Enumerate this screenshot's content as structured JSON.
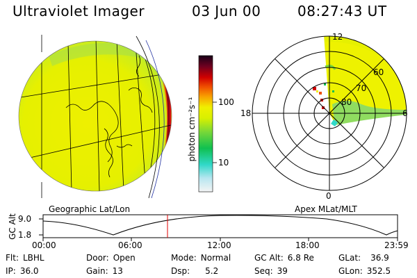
{
  "header": {
    "instrument": "Ultraviolet Imager",
    "date": "03 Jun 00",
    "time": "08:27:43 UT"
  },
  "colorbar": {
    "unit_label": "photon cm⁻²s⁻¹",
    "ticks": [
      "100",
      "10"
    ],
    "colors": [
      "#f4f4f4",
      "#b8e6f0",
      "#30d8c8",
      "#10c050",
      "#78d838",
      "#d8f000",
      "#f0f000",
      "#f8a000",
      "#f05000",
      "#d00000",
      "#700020",
      "#180018"
    ]
  },
  "globe_panel": {
    "caption": "Geographic Lat/Lon"
  },
  "polar_panel": {
    "caption": "Apex MLat/MLT",
    "mlt_labels": {
      "top": "12",
      "left": "18",
      "right": "6",
      "bottom": "0"
    },
    "lat_labels": [
      "60",
      "70",
      "80"
    ]
  },
  "altitude_plot": {
    "ylabel": "GC Alt",
    "ymax_label": "9.0",
    "ymin_label": "1.8",
    "time_ticks": [
      "00:00",
      "06:00",
      "12:00",
      "18:00",
      "23:59"
    ],
    "marker_time": "08:27:43"
  },
  "status": {
    "flt_label": "Flt:",
    "flt_value": "LBHL",
    "ip_label": "IP:",
    "ip_value": "36.0",
    "door_label": "Door:",
    "door_value": "Open",
    "gain_label": "Gain:",
    "gain_value": "13",
    "mode_label": "Mode:",
    "mode_value": "Normal",
    "dsp_label": "Dsp:",
    "dsp_value": "5.2",
    "gcalt_label": "GC Alt:",
    "gcalt_value": "6.8 Re",
    "seq_label": "Seq:",
    "seq_value": "39",
    "glat_label": "GLat:",
    "glat_value": "36.9",
    "glon_label": "GLon:",
    "glon_value": "352.5"
  }
}
